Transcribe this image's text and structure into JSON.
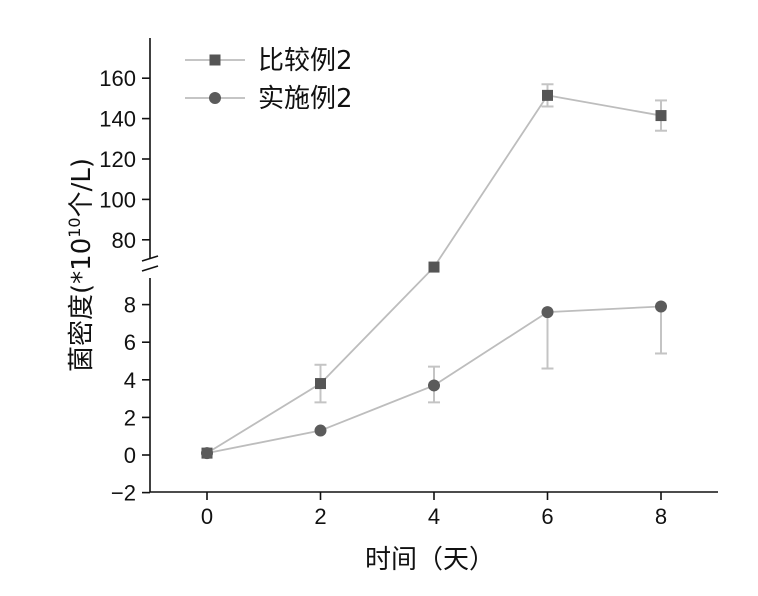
{
  "chart_data": {
    "type": "line",
    "xlabel": "时间（天）",
    "ylabel": "菌密度(*10",
    "ylabel_sup": "10",
    "ylabel_tail": "个/L)",
    "x": [
      0,
      2,
      4,
      6,
      8
    ],
    "x_ticks": [
      "0",
      "2",
      "4",
      "6",
      "8"
    ],
    "y_ticks_lower": [
      "−2",
      "0",
      "2",
      "4",
      "6",
      "8"
    ],
    "y_ticks_upper": [
      "80",
      "100",
      "120",
      "140",
      "160"
    ],
    "y_axis_break": [
      9,
      70
    ],
    "legend_position": "top-left",
    "series": [
      {
        "name": "比较例2",
        "marker": "square",
        "values": [
          0.1,
          3.8,
          66.5,
          151.5,
          141.5
        ],
        "err_up": [
          0,
          1.0,
          0,
          5.5,
          7.5
        ],
        "err_down": [
          0,
          1.0,
          0,
          5.5,
          7.5
        ]
      },
      {
        "name": "实施例2",
        "marker": "circle",
        "values": [
          0.1,
          1.3,
          3.7,
          7.6,
          7.9
        ],
        "err_up": [
          0,
          0,
          1.0,
          0,
          0
        ],
        "err_down": [
          0,
          0,
          0.9,
          3.0,
          2.5
        ]
      }
    ]
  }
}
